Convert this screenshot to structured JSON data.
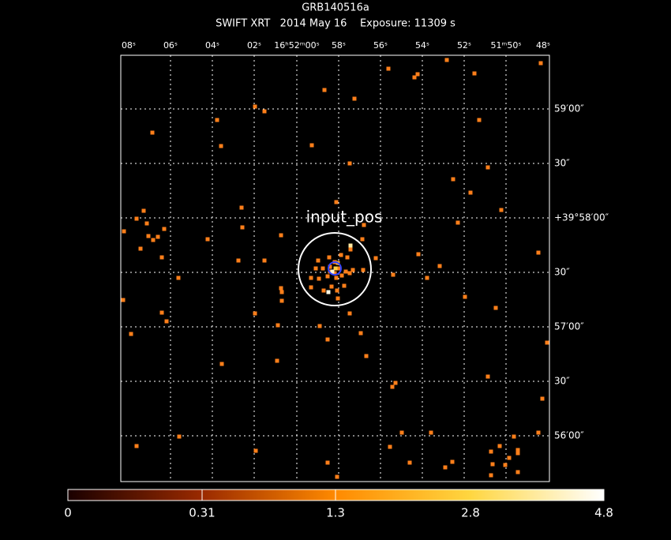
{
  "header": {
    "title": "GRB140516a",
    "subtitle": "SWIFT XRT   2014 May 16    Exposure: 11309 s"
  },
  "image": {
    "top_labels": [
      "08ˢ",
      "06ˢ",
      "04ˢ",
      "02ˢ",
      "16ʰ52ᵐ00ˢ",
      "58ˢ",
      "56ˢ",
      "54ˢ",
      "52ˢ",
      "51ᵐ50ˢ",
      "48ˢ"
    ],
    "right_labels": [
      "59′00″",
      "30″",
      "+39°58′00″",
      "30″",
      "57′00″",
      "30″",
      "56′00″"
    ],
    "annotation": "input_pos"
  },
  "colorbar": {
    "labels": [
      "0",
      "0.31",
      "1.3",
      "2.8",
      "4.8"
    ]
  }
}
